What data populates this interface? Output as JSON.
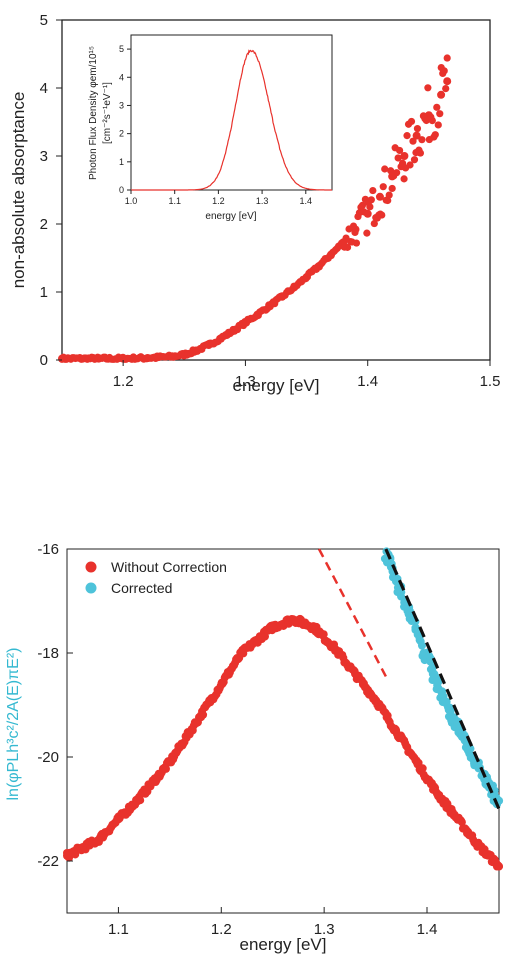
{
  "colors": {
    "red": "#e8322c",
    "cyan": "#4ec3da",
    "black": "#111111",
    "cyan_label": "#35b9d1"
  },
  "chart_data": [
    {
      "type": "scatter",
      "xlabel": "energy [eV]",
      "ylabel": "non-absolute absorptance",
      "xlim": [
        1.15,
        1.5
      ],
      "ylim": [
        0,
        5
      ],
      "xticks": [
        "1.2",
        "1.3",
        "1.4",
        "1.5"
      ],
      "yticks": [
        "0",
        "1",
        "2",
        "3",
        "4",
        "5"
      ],
      "grid": false,
      "series": [
        {
          "color": "#e8322c",
          "x": [
            1.15,
            1.18,
            1.2,
            1.22,
            1.24,
            1.25,
            1.26,
            1.27,
            1.28,
            1.29,
            1.3,
            1.31,
            1.32,
            1.33,
            1.34,
            1.35,
            1.36,
            1.37,
            1.38,
            1.39,
            1.4,
            1.41,
            1.42,
            1.43,
            1.44,
            1.45,
            1.46,
            1.465
          ],
          "y": [
            0.02,
            0.02,
            0.02,
            0.03,
            0.05,
            0.08,
            0.14,
            0.22,
            0.32,
            0.43,
            0.55,
            0.67,
            0.8,
            0.93,
            1.07,
            1.22,
            1.38,
            1.55,
            1.73,
            1.92,
            2.15,
            2.4,
            2.7,
            3.0,
            3.3,
            3.6,
            3.9,
            4.1
          ]
        }
      ],
      "inset": {
        "type": "line",
        "xlabel": "energy [eV]",
        "ylabel_line1": "Photon Flux Density φem/10¹⁵",
        "ylabel_line2": "[cm⁻²s⁻¹eV⁻¹]",
        "xlim": [
          1.0,
          1.46
        ],
        "ylim": [
          0,
          5.5
        ],
        "xticks": [
          "1.0",
          "1.1",
          "1.2",
          "1.3",
          "1.4"
        ],
        "yticks": [
          "0",
          "1",
          "2",
          "3",
          "4",
          "5"
        ],
        "peak_x": 1.275,
        "peak_y": 4.95,
        "color": "#e8322c"
      }
    },
    {
      "type": "scatter",
      "xlabel": "energy [eV]",
      "ylabel": "ln(φPLh³c²/2A(E)πE²)",
      "xlim": [
        1.05,
        1.47
      ],
      "ylim": [
        -23,
        -16
      ],
      "xticks": [
        "1.1",
        "1.2",
        "1.3",
        "1.4"
      ],
      "yticks": [
        "-16",
        "-18",
        "-20",
        "-22"
      ],
      "legend": "top-left",
      "series": [
        {
          "name": "Without Correction",
          "color": "#e8322c",
          "x": [
            1.05,
            1.08,
            1.1,
            1.12,
            1.15,
            1.18,
            1.2,
            1.22,
            1.25,
            1.27,
            1.29,
            1.31,
            1.33,
            1.35,
            1.37,
            1.39,
            1.41,
            1.43,
            1.45,
            1.47
          ],
          "y": [
            -21.9,
            -21.6,
            -21.2,
            -20.8,
            -20.1,
            -19.2,
            -18.6,
            -18.0,
            -17.5,
            -17.35,
            -17.5,
            -17.9,
            -18.4,
            -18.9,
            -19.5,
            -20.1,
            -20.7,
            -21.2,
            -21.7,
            -22.1
          ]
        },
        {
          "name": "Corrected",
          "color": "#4ec3da",
          "x": [
            1.36,
            1.37,
            1.38,
            1.39,
            1.4,
            1.41,
            1.42,
            1.43,
            1.44,
            1.45,
            1.46,
            1.47
          ],
          "y": [
            -16.1,
            -16.6,
            -17.1,
            -17.6,
            -18.1,
            -18.6,
            -19.05,
            -19.45,
            -19.85,
            -20.2,
            -20.55,
            -20.85
          ]
        }
      ],
      "fit_lines": [
        {
          "color": "#e8322c",
          "style": "dashed",
          "x": [
            1.295,
            1.36
          ],
          "y": [
            -16.0,
            -18.45
          ]
        },
        {
          "color": "#111111",
          "style": "dashed",
          "x": [
            1.36,
            1.47
          ],
          "y": [
            -16.0,
            -21.0
          ]
        }
      ]
    }
  ]
}
